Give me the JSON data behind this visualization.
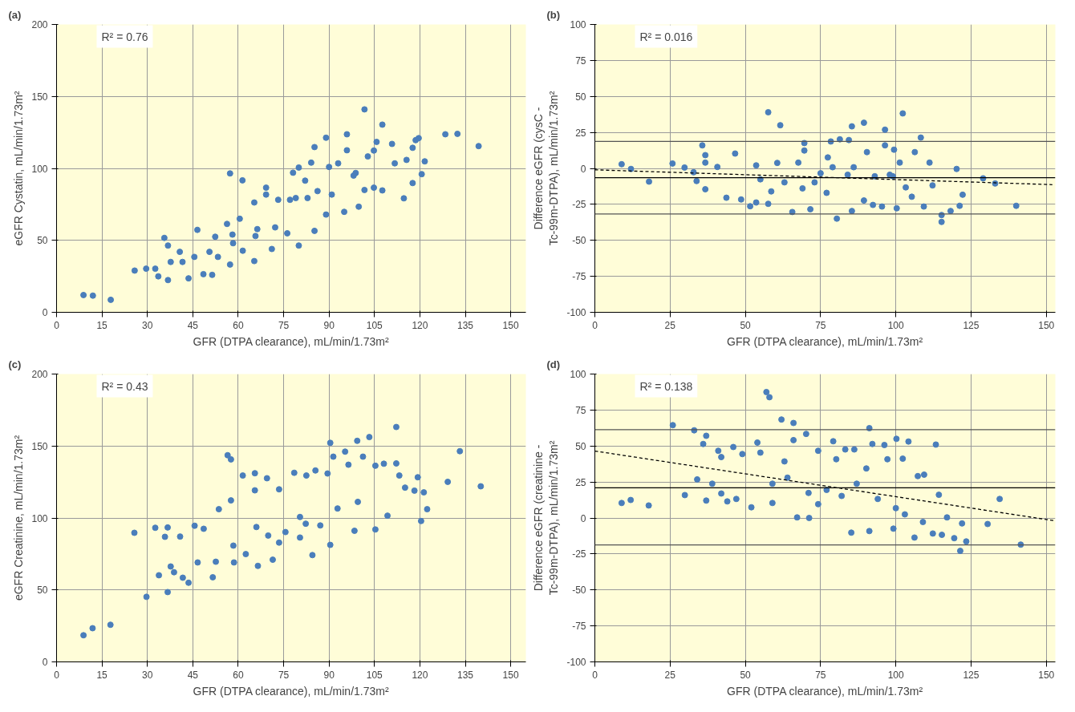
{
  "chart_data": [
    {
      "type": "scatter",
      "title": "(a)",
      "xlabel": "GFR (DTPA clearance), mL/min/1.73m²",
      "ylabel": "eGFR Cystatin, mL/min/1.73m²",
      "annotations": [
        "R² = 0.76"
      ],
      "xlim": [
        0,
        155
      ],
      "ylim": [
        0,
        200
      ],
      "xticks": [
        0,
        15,
        30,
        45,
        60,
        75,
        90,
        105,
        120,
        135,
        150
      ],
      "yticks": [
        0,
        50,
        100,
        150,
        200
      ],
      "grid": true,
      "marker": "circle",
      "series": [
        {
          "color": "#4a7ebb",
          "x": [
            8.9,
            12,
            17.9,
            25.8,
            29.6,
            32.6,
            33.6,
            35.6,
            36.8,
            36.8,
            37.7,
            40.7,
            41.6,
            43.6,
            46.5,
            45.5,
            48.5,
            50.5,
            51.4,
            52.4,
            53.3,
            56.3,
            57.3,
            57.3,
            58.3,
            61.4,
            60.5,
            61.5,
            65.3,
            65.3,
            66.3,
            69.2,
            69.2,
            71.1,
            72.2,
            73.2,
            76.2,
            78.1,
            80,
            80,
            79,
            82.1,
            84.1,
            85.2,
            85.2,
            86.2,
            89,
            89,
            90,
            93,
            95,
            95.9,
            95.9,
            98.8,
            99.8,
            101.7,
            101.7,
            102.8,
            104.8,
            104.8,
            105.7,
            107.6,
            107.6,
            110.8,
            111.7,
            114.7,
            115.6,
            117.6,
            117.6,
            118.6,
            119.6,
            120.6,
            121.6,
            128.4,
            132.4,
            139.4,
            77.1,
            82.9,
            98.1,
            90.9,
            58.1,
            65.7
          ],
          "values": [
            12,
            11.6,
            8.7,
            29,
            30.3,
            30.3,
            25,
            51.7,
            46.4,
            22.4,
            35,
            42,
            35,
            23.6,
            57.3,
            38.5,
            26.5,
            42,
            26,
            52.5,
            38.5,
            61.4,
            96.5,
            33.2,
            48,
            91.7,
            65,
            42.8,
            76.3,
            35.6,
            57.8,
            86.6,
            81.8,
            44,
            59,
            78.2,
            54.9,
            97,
            100.6,
            46.4,
            79.4,
            91.5,
            104,
            114.8,
            56.6,
            84.2,
            121.3,
            67.9,
            101,
            103.5,
            69.8,
            123.7,
            112.6,
            96.8,
            73.4,
            141,
            85,
            108.3,
            112.4,
            86.6,
            118.4,
            130.4,
            84.7,
            117,
            103.5,
            79.2,
            105.9,
            114.3,
            89.8,
            119.6,
            121,
            96,
            104.9,
            123.7,
            124,
            115.5,
            78.2,
            79.4,
            95,
            81.8,
            54,
            53
          ]
        }
      ]
    },
    {
      "type": "scatter",
      "title": "(b)",
      "xlabel": "GFR (DTPA clearance), mL/min/1.73m²",
      "ylabel": "Difference eGFR (cysC - Tc-99m-DTPA), mL/min/1.73m²",
      "annotations": [
        "R² = 0.016"
      ],
      "xlim": [
        0,
        153
      ],
      "ylim": [
        -100,
        100
      ],
      "xticks": [
        0,
        25,
        50,
        75,
        100,
        125,
        150
      ],
      "yticks": [
        -100,
        -75,
        -50,
        -25,
        0,
        25,
        50,
        75,
        100
      ],
      "grid": true,
      "marker": "circle",
      "ref_lines": [
        {
          "axis": "y",
          "value": 18.7,
          "color": "#555555"
        },
        {
          "axis": "y",
          "value": -6.5,
          "color": "#000000"
        },
        {
          "axis": "y",
          "value": -31.7,
          "color": "#555555"
        }
      ],
      "series": [
        {
          "color": "#4a7ebb",
          "x": [
            8.9,
            12,
            18,
            25.8,
            29.8,
            32.8,
            33.8,
            35.7,
            36.7,
            36.7,
            36.7,
            40.7,
            43.7,
            46.6,
            48.6,
            51.6,
            53.6,
            53.6,
            57.6,
            57.6,
            61.6,
            60.6,
            58.6,
            65.6,
            69.6,
            69.6,
            67.6,
            71.6,
            77.4,
            78.4,
            80.4,
            81.4,
            84.4,
            85.4,
            85.4,
            89.4,
            90.4,
            89.4,
            92.4,
            96.4,
            96.4,
            95.4,
            99.4,
            100.3,
            102.3,
            101.3,
            103.3,
            106.3,
            108.3,
            105.3,
            109.3,
            111.2,
            112.2,
            115.2,
            115.2,
            118.2,
            120.2,
            121.2,
            122.2,
            129,
            133,
            140,
            75,
            79,
            84,
            73,
            63,
            55,
            98,
            93,
            69,
            77,
            86,
            99
          ],
          "values": [
            2.9,
            -0.4,
            -9.2,
            3.4,
            0.6,
            -2.7,
            -8.8,
            16,
            9.2,
            4,
            -14.5,
            1,
            -20.4,
            10.3,
            -21.6,
            -26.3,
            2.1,
            -23.7,
            39,
            -24.6,
            30,
            3.8,
            -16,
            -30.3,
            17.6,
            12.4,
            4,
            -28.4,
            7.6,
            18.7,
            -34.9,
            20.2,
            19.7,
            29.2,
            -29.6,
            31.7,
            11.3,
            -22.3,
            -25.4,
            26.9,
            16,
            -26.5,
            13,
            -27.7,
            38.2,
            4,
            -13.2,
            11.3,
            21.4,
            -19.7,
            -26.5,
            4,
            -11.8,
            -37.2,
            -32.4,
            -29.6,
            -0.4,
            -26,
            -18.3,
            -6.9,
            -10.5,
            -26,
            -3.4,
            0.8,
            -4.4,
            -9.7,
            -9.7,
            -7.6,
            -4.4,
            -5.5,
            -13.9,
            -17,
            0.8,
            -5.5
          ]
        },
        {
          "type": "line",
          "color": "#000000",
          "line_style": "dashed",
          "marker": "none",
          "x": [
            0,
            152
          ],
          "values": [
            -1,
            -11.3
          ]
        }
      ]
    },
    {
      "type": "scatter",
      "title": "(c)",
      "xlabel": "GFR (DTPA clearance), mL/min/1.73m²",
      "ylabel": "eGFR Creatinine, mL/min/1.73m²",
      "annotations": [
        "R² = 0.43"
      ],
      "xlim": [
        0,
        155
      ],
      "ylim": [
        0,
        200
      ],
      "xticks": [
        0,
        15,
        30,
        45,
        60,
        75,
        90,
        105,
        120,
        135,
        150
      ],
      "yticks": [
        0,
        50,
        100,
        150,
        200
      ],
      "grid": true,
      "marker": "circle",
      "series": [
        {
          "color": "#4a7ebb",
          "x": [
            8.9,
            11.9,
            17.8,
            25.7,
            29.7,
            32.6,
            33.8,
            35.8,
            36.7,
            36.7,
            37.7,
            38.8,
            40.8,
            41.7,
            43.6,
            45.6,
            46.6,
            48.6,
            51.6,
            52.6,
            53.6,
            56.5,
            57.6,
            57.6,
            58.6,
            61.5,
            62.5,
            65.5,
            65.5,
            66.5,
            69.5,
            71.4,
            73.5,
            73.5,
            78.5,
            80.4,
            82.5,
            84.5,
            85.5,
            89.5,
            90.4,
            90.4,
            91.4,
            95.3,
            96.4,
            98.4,
            99.3,
            101.2,
            103.3,
            105.3,
            105.3,
            108.1,
            109.3,
            112.2,
            112.2,
            113.2,
            115.1,
            118.2,
            119.3,
            120.4,
            121.3,
            122.4,
            129.2,
            133.2,
            140.1,
            75.6,
            80.4,
            69.9,
            82.3,
            92.8,
            99.5,
            87.1,
            66,
            58.4
          ],
          "values": [
            18.5,
            23.4,
            25.8,
            89.7,
            45.2,
            93.2,
            60.2,
            86.9,
            93.4,
            48.5,
            66.3,
            62.3,
            87.1,
            58.5,
            55,
            94.6,
            69.1,
            92.5,
            58.8,
            69.6,
            106.1,
            143.6,
            140.7,
            112.2,
            69.1,
            129.5,
            74.9,
            131.1,
            119.2,
            66.7,
            127.6,
            71,
            119.9,
            82.9,
            131.4,
            86.4,
            129.5,
            74.2,
            133,
            130.9,
            152.2,
            81.3,
            142.6,
            146.1,
            137,
            91.1,
            153.6,
            142.6,
            156.2,
            136.3,
            92,
            137.7,
            101.6,
            163.2,
            137.9,
            129.5,
            121.1,
            119,
            128.3,
            97.9,
            117.8,
            106.1,
            125.1,
            146.4,
            122,
            90.2,
            100.7,
            87.8,
            96,
            106.6,
            111.2,
            94.8,
            93.7,
            80.8
          ]
        }
      ]
    },
    {
      "type": "scatter",
      "title": "(d)",
      "xlabel": "GFR (DTPA clearance), mL/min/1.73m²",
      "ylabel": "Difference eGFR (creatinine - Tc-99m-DTPA), mL/min/1.73m²",
      "annotations": [
        "R² = 0.138"
      ],
      "xlim": [
        0,
        153
      ],
      "ylim": [
        -100,
        100
      ],
      "xticks": [
        0,
        25,
        50,
        75,
        100,
        125,
        150
      ],
      "yticks": [
        -100,
        -75,
        -50,
        -25,
        0,
        25,
        50,
        75,
        100
      ],
      "grid": true,
      "marker": "circle",
      "ref_lines": [
        {
          "axis": "y",
          "value": 61.4,
          "color": "#555555"
        },
        {
          "axis": "y",
          "value": 21,
          "color": "#000000"
        },
        {
          "axis": "y",
          "value": -18.7,
          "color": "#555555"
        }
      ],
      "series": [
        {
          "color": "#4a7ebb",
          "x": [
            8.9,
            11.9,
            17.9,
            25.9,
            29.9,
            33,
            34,
            36,
            37,
            37,
            39,
            41,
            42,
            42,
            44,
            46,
            47,
            49,
            52,
            54,
            55,
            57,
            58,
            59,
            62,
            63,
            66,
            66,
            67.2,
            70.2,
            71.2,
            74.2,
            74.2,
            79.2,
            80.2,
            83.2,
            85.2,
            86.2,
            90.2,
            91.2,
            91.2,
            92.2,
            96.2,
            97.2,
            99.2,
            100.2,
            102.3,
            104.2,
            106.2,
            107.3,
            109.4,
            112.3,
            113.3,
            114.3,
            115.3,
            119.4,
            121.4,
            123.4,
            130.5,
            134.5,
            141.5,
            77,
            71,
            82,
            94,
            100,
            117,
            122,
            59,
            64,
            87,
            103,
            109
          ],
          "values": [
            10.4,
            12.5,
            8.7,
            64.5,
            15.9,
            60.9,
            26.8,
            51.4,
            57.1,
            12.1,
            23.8,
            46.7,
            42.3,
            17,
            11.5,
            49.3,
            13.2,
            44.4,
            7.4,
            52.4,
            45.4,
            87.5,
            83.9,
            10.4,
            68.4,
            39.3,
            66,
            54.1,
            0.4,
            58.4,
            0,
            46.7,
            9.6,
            53.3,
            40.8,
            47.6,
            -10.2,
            47.6,
            34.4,
            62.4,
            -9.1,
            51.4,
            50.7,
            40.8,
            -7.4,
            55,
            41.2,
            53.1,
            -13.6,
            29.1,
            30.1,
            -10.8,
            51,
            16.1,
            -11.7,
            -14,
            -22.9,
            -16.3,
            -4.2,
            13.2,
            -18.5,
            19.5,
            17.4,
            15.3,
            13.2,
            6.8,
            0.4,
            -3.8,
            23.8,
            28,
            23.8,
            2.5,
            -2.8
          ]
        },
        {
          "type": "line",
          "color": "#000000",
          "line_style": "dashed",
          "marker": "none",
          "x": [
            0,
            153
          ],
          "values": [
            46.5,
            -2
          ]
        }
      ]
    }
  ]
}
